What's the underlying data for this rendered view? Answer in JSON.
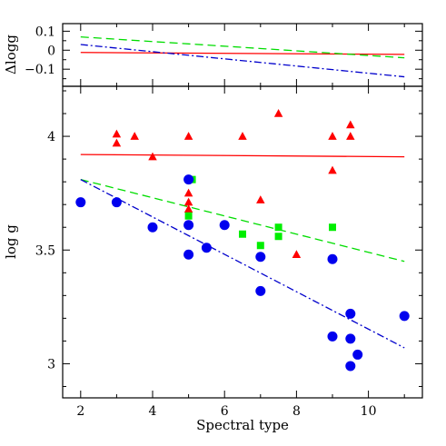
{
  "chart_data": [
    {
      "panel": "top",
      "type": "line",
      "title": "",
      "xlabel": "",
      "ylabel": "Δlogg",
      "xlim": [
        1.5,
        11.5
      ],
      "ylim": [
        -0.19,
        0.14
      ],
      "xticks_major": [
        2,
        4,
        6,
        8,
        10
      ],
      "xticks_minor": [
        3,
        5,
        7,
        9,
        11
      ],
      "yticks_major": [
        -0.1,
        0,
        0.1
      ],
      "yticks_minor": [
        -0.15,
        -0.05,
        0.05
      ],
      "ytick_labels": [
        "−0.1",
        "0",
        "0.1"
      ],
      "series": [
        {
          "color": "#ff0000",
          "style": "solid",
          "x": [
            2,
            11
          ],
          "y": [
            -0.012,
            -0.022
          ]
        },
        {
          "color": "#00dd00",
          "style": "dashed",
          "x": [
            2,
            11
          ],
          "y": [
            0.07,
            -0.04
          ]
        },
        {
          "color": "#0000cc",
          "style": "dashdot",
          "x": [
            2,
            11
          ],
          "y": [
            0.03,
            -0.14
          ]
        }
      ]
    },
    {
      "panel": "main",
      "type": "scatter",
      "title": "",
      "xlabel": "Spectral type",
      "ylabel": "log g",
      "xlim": [
        1.5,
        11.5
      ],
      "ylim": [
        2.85,
        4.22
      ],
      "xticks_major": [
        2,
        4,
        6,
        8,
        10
      ],
      "xticks_minor": [
        3,
        5,
        7,
        9,
        11
      ],
      "xtick_labels": [
        "2",
        "4",
        "6",
        "8",
        "10"
      ],
      "yticks_major": [
        3,
        3.5,
        4
      ],
      "yticks_minor": [
        2.9,
        3.1,
        3.2,
        3.3,
        3.4,
        3.6,
        3.7,
        3.8,
        3.9,
        4.1,
        4.2
      ],
      "ytick_labels": [
        "3",
        "3.5",
        "4"
      ],
      "series": [
        {
          "marker": "triangle",
          "color": "#ff0000",
          "points": [
            [
              3,
              4.01
            ],
            [
              3,
              3.97
            ],
            [
              3.5,
              4.0
            ],
            [
              4,
              3.91
            ],
            [
              5,
              4.0
            ],
            [
              5,
              3.75
            ],
            [
              5,
              3.71
            ],
            [
              5,
              3.68
            ],
            [
              6.5,
              4.0
            ],
            [
              7,
              3.72
            ],
            [
              7.5,
              4.1
            ],
            [
              8,
              3.48
            ],
            [
              9,
              4.0
            ],
            [
              9,
              3.85
            ],
            [
              9.5,
              4.05
            ],
            [
              9.5,
              4.0
            ]
          ]
        },
        {
          "marker": "square",
          "color": "#00ee00",
          "points": [
            [
              5,
              3.65
            ],
            [
              5.1,
              3.81
            ],
            [
              6.5,
              3.57
            ],
            [
              7,
              3.52
            ],
            [
              7.5,
              3.6
            ],
            [
              7.5,
              3.56
            ],
            [
              9,
              3.6
            ]
          ]
        },
        {
          "marker": "circle",
          "color": "#0000ee",
          "points": [
            [
              2,
              3.71
            ],
            [
              3,
              3.71
            ],
            [
              4,
              3.6
            ],
            [
              5,
              3.81
            ],
            [
              5,
              3.61
            ],
            [
              5,
              3.48
            ],
            [
              5.5,
              3.51
            ],
            [
              6,
              3.61
            ],
            [
              7,
              3.47
            ],
            [
              7,
              3.32
            ],
            [
              9,
              3.46
            ],
            [
              9,
              3.12
            ],
            [
              9.5,
              3.22
            ],
            [
              9.5,
              3.11
            ],
            [
              9.5,
              2.99
            ],
            [
              9.7,
              3.04
            ],
            [
              11,
              3.21
            ]
          ]
        }
      ],
      "fits": [
        {
          "color": "#ff0000",
          "style": "solid",
          "x": [
            2,
            11
          ],
          "y": [
            3.92,
            3.91
          ]
        },
        {
          "color": "#00dd00",
          "style": "dashed",
          "x": [
            2,
            11
          ],
          "y": [
            3.81,
            3.45
          ]
        },
        {
          "color": "#0000cc",
          "style": "dashdot",
          "x": [
            2,
            11
          ],
          "y": [
            3.81,
            3.07
          ]
        }
      ]
    }
  ]
}
